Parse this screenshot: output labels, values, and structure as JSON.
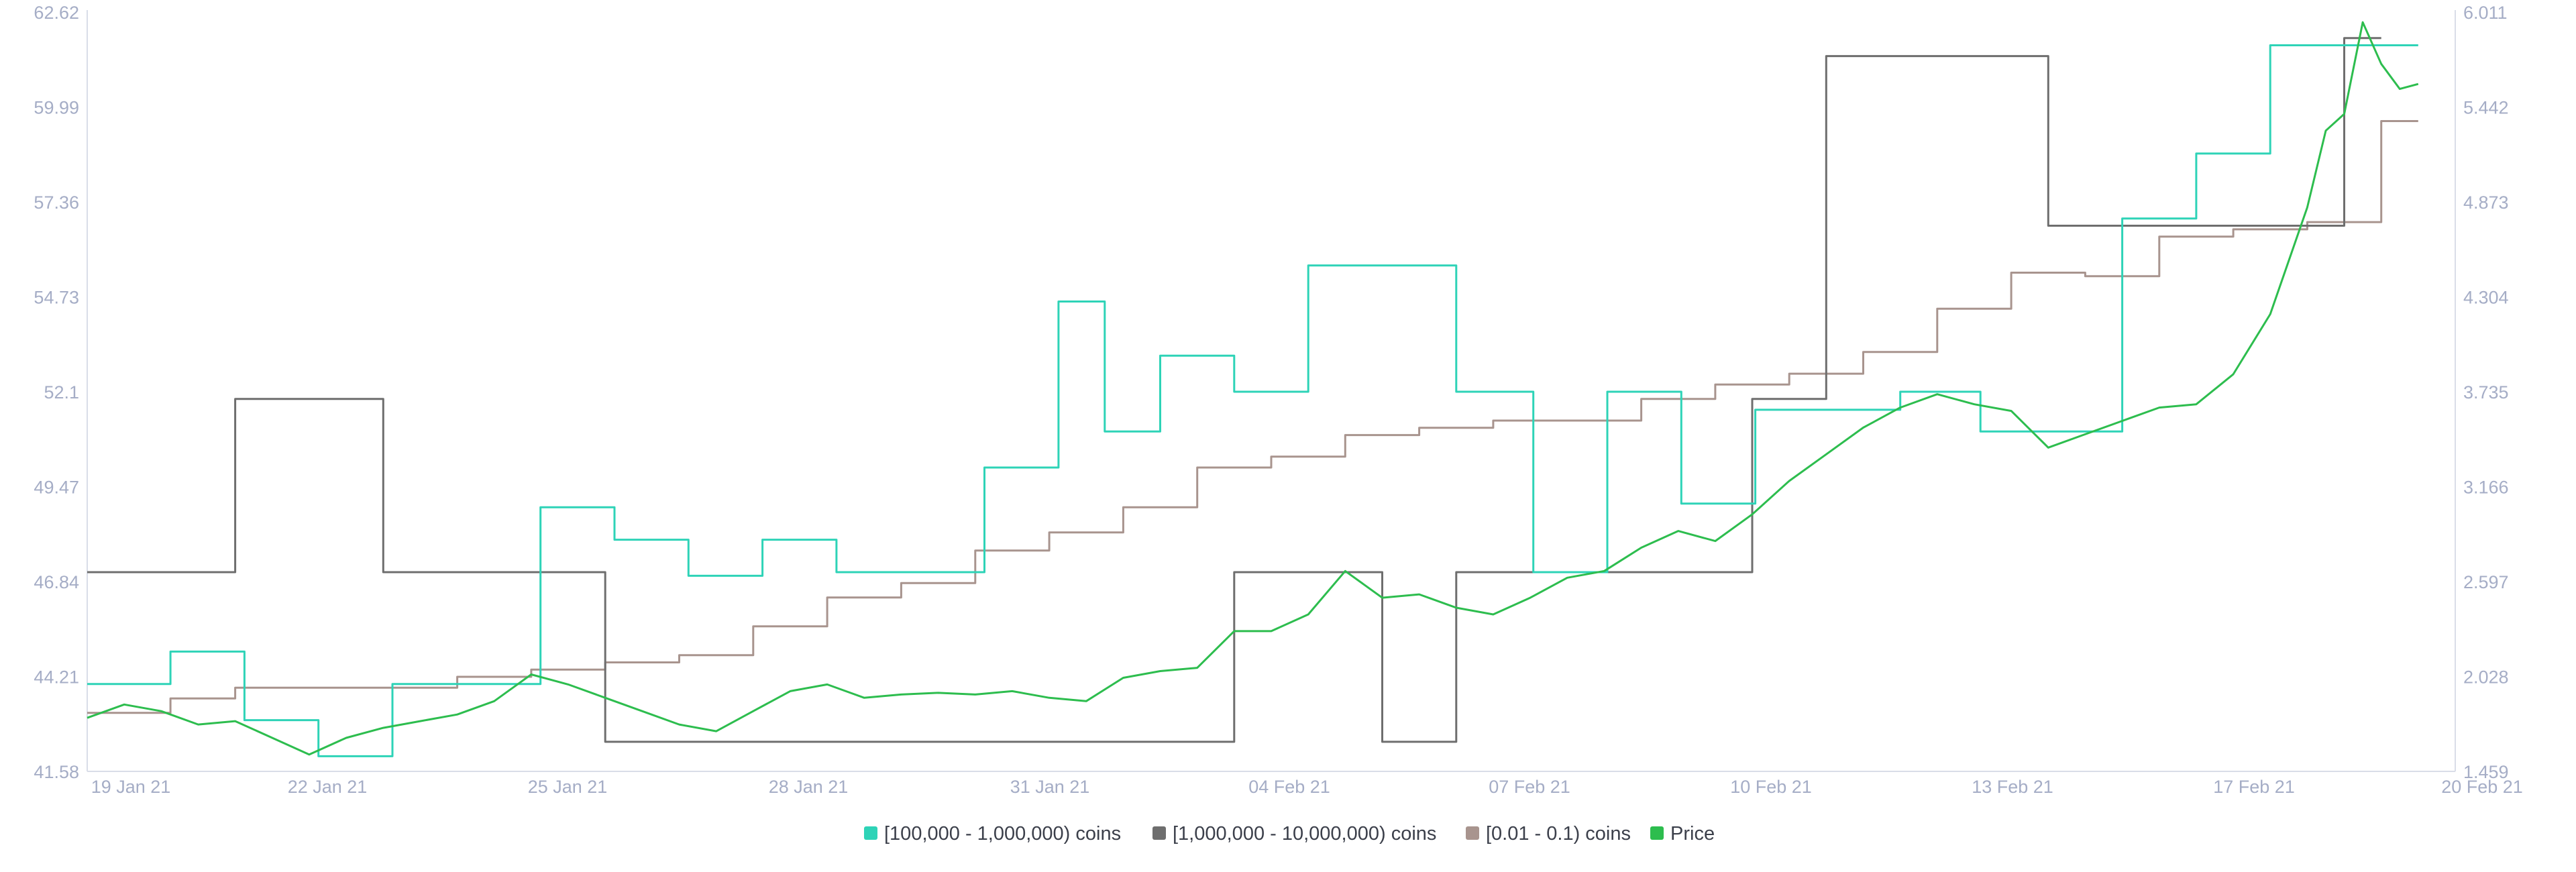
{
  "chart_data": {
    "type": "line",
    "colors": {
      "whales_100k_1m": "#2ed3b7",
      "whales_1m_10m": "#6e6e6e",
      "small_001_01": "#a8948e",
      "price": "#2dbd4e",
      "axis": "#d9dde8",
      "tick_text": "#a5adc6"
    },
    "x_axis": {
      "range_days": [
        "2021-01-19",
        "2021-02-20"
      ],
      "tick_labels": [
        "19 Jan 21",
        "22 Jan 21",
        "25 Jan 21",
        "28 Jan 21",
        "31 Jan 21",
        "04 Feb 21",
        "07 Feb 21",
        "10 Feb 21",
        "13 Feb 21",
        "17 Feb 21",
        "20 Feb 21"
      ]
    },
    "y_left": {
      "min": 41.58,
      "max": 62.62,
      "tick_labels": [
        "62.62",
        "59.99",
        "57.36",
        "54.73",
        "52.1",
        "49.47",
        "46.84",
        "44.21",
        "41.58"
      ]
    },
    "y_right": {
      "min": 1.459,
      "max": 6.011,
      "tick_labels": [
        "6.011",
        "5.442",
        "4.873",
        "4.304",
        "3.735",
        "3.166",
        "2.597",
        "2.028",
        "1.459"
      ]
    },
    "legend": [
      {
        "key": "whales_100k_1m",
        "label": "[100,000  - 1,000,000) coins"
      },
      {
        "key": "whales_1m_10m",
        "label": "[1,000,000 - 10,000,000) coins"
      },
      {
        "key": "small_001_01",
        "label": "[0.01 - 0.1) coins"
      },
      {
        "key": "price",
        "label": "Price"
      }
    ],
    "series": [
      {
        "key": "whales_100k_1m",
        "axis": "left",
        "step": true,
        "points": [
          [
            "2021-01-19 00:00",
            44.0
          ],
          [
            "2021-01-20 03:00",
            44.9
          ],
          [
            "2021-01-21 03:00",
            43.0
          ],
          [
            "2021-01-22 03:00",
            42.0
          ],
          [
            "2021-01-23 03:00",
            44.0
          ],
          [
            "2021-01-25 03:00",
            48.9
          ],
          [
            "2021-01-26 03:00",
            48.0
          ],
          [
            "2021-01-27 03:00",
            47.0
          ],
          [
            "2021-01-28 03:00",
            48.0
          ],
          [
            "2021-01-29 03:00",
            47.1
          ],
          [
            "2021-01-31 03:00",
            50.0
          ],
          [
            "2021-02-01 03:00",
            54.6
          ],
          [
            "2021-02-01 18:00",
            51.0
          ],
          [
            "2021-02-02 12:00",
            53.1
          ],
          [
            "2021-02-03 12:00",
            52.1
          ],
          [
            "2021-02-04 12:00",
            55.6
          ],
          [
            "2021-02-06 12:00",
            52.1
          ],
          [
            "2021-02-07 13:00",
            47.1
          ],
          [
            "2021-02-08 13:00",
            52.1
          ],
          [
            "2021-02-09 13:00",
            49.0
          ],
          [
            "2021-02-10 13:00",
            51.6
          ],
          [
            "2021-02-11 13:00",
            51.6
          ],
          [
            "2021-02-12 12:00",
            52.1
          ],
          [
            "2021-02-13 14:00",
            51.0
          ],
          [
            "2021-02-15 12:00",
            56.9
          ],
          [
            "2021-02-16 12:00",
            58.7
          ],
          [
            "2021-02-17 12:00",
            61.7
          ],
          [
            "2021-02-19 12:00",
            61.7
          ]
        ]
      },
      {
        "key": "whales_1m_10m",
        "axis": "left",
        "step": true,
        "points": [
          [
            "2021-01-19 00:00",
            47.1
          ],
          [
            "2021-01-21 00:00",
            51.9
          ],
          [
            "2021-01-23 00:00",
            47.1
          ],
          [
            "2021-01-26 00:00",
            42.4
          ],
          [
            "2021-02-03 12:00",
            47.1
          ],
          [
            "2021-02-05 12:00",
            42.4
          ],
          [
            "2021-02-06 12:00",
            47.1
          ],
          [
            "2021-02-10 12:00",
            51.9
          ],
          [
            "2021-02-11 12:00",
            61.4
          ],
          [
            "2021-02-14 12:00",
            56.7
          ],
          [
            "2021-02-18 12:00",
            61.9
          ],
          [
            "2021-02-19 00:00",
            61.9
          ]
        ]
      },
      {
        "key": "small_001_01",
        "axis": "left",
        "step": true,
        "points": [
          [
            "2021-01-19 00:00",
            43.2
          ],
          [
            "2021-01-20 03:00",
            43.6
          ],
          [
            "2021-01-21 00:00",
            43.9
          ],
          [
            "2021-01-24 00:00",
            44.2
          ],
          [
            "2021-01-25 00:00",
            44.4
          ],
          [
            "2021-01-26 00:00",
            44.6
          ],
          [
            "2021-01-27 00:00",
            44.8
          ],
          [
            "2021-01-28 00:00",
            45.6
          ],
          [
            "2021-01-29 00:00",
            46.4
          ],
          [
            "2021-01-30 00:00",
            46.8
          ],
          [
            "2021-01-31 00:00",
            47.7
          ],
          [
            "2021-02-01 00:00",
            48.2
          ],
          [
            "2021-02-02 00:00",
            48.9
          ],
          [
            "2021-02-03 00:00",
            50.0
          ],
          [
            "2021-02-04 00:00",
            50.3
          ],
          [
            "2021-02-05 00:00",
            50.9
          ],
          [
            "2021-02-06 00:00",
            51.1
          ],
          [
            "2021-02-07 00:00",
            51.3
          ],
          [
            "2021-02-09 00:00",
            51.9
          ],
          [
            "2021-02-10 00:00",
            52.3
          ],
          [
            "2021-02-11 00:00",
            52.6
          ],
          [
            "2021-02-12 00:00",
            53.2
          ],
          [
            "2021-02-13 00:00",
            54.4
          ],
          [
            "2021-02-14 00:00",
            55.4
          ],
          [
            "2021-02-15 00:00",
            55.3
          ],
          [
            "2021-02-16 00:00",
            56.4
          ],
          [
            "2021-02-17 00:00",
            56.6
          ],
          [
            "2021-02-18 00:00",
            56.8
          ],
          [
            "2021-02-19 00:00",
            59.6
          ],
          [
            "2021-02-19 12:00",
            59.6
          ]
        ]
      },
      {
        "key": "price",
        "axis": "right",
        "step": false,
        "points": [
          [
            "2021-01-19 00:00",
            1.78
          ],
          [
            "2021-01-19 12:00",
            1.86
          ],
          [
            "2021-01-20 00:00",
            1.82
          ],
          [
            "2021-01-20 12:00",
            1.74
          ],
          [
            "2021-01-21 00:00",
            1.76
          ],
          [
            "2021-01-21 12:00",
            1.66
          ],
          [
            "2021-01-22 00:00",
            1.56
          ],
          [
            "2021-01-22 12:00",
            1.66
          ],
          [
            "2021-01-23 00:00",
            1.72
          ],
          [
            "2021-01-23 12:00",
            1.76
          ],
          [
            "2021-01-24 00:00",
            1.8
          ],
          [
            "2021-01-24 12:00",
            1.88
          ],
          [
            "2021-01-25 00:00",
            2.04
          ],
          [
            "2021-01-25 12:00",
            1.98
          ],
          [
            "2021-01-26 00:00",
            1.9
          ],
          [
            "2021-01-26 12:00",
            1.82
          ],
          [
            "2021-01-27 00:00",
            1.74
          ],
          [
            "2021-01-27 12:00",
            1.7
          ],
          [
            "2021-01-28 00:00",
            1.82
          ],
          [
            "2021-01-28 12:00",
            1.94
          ],
          [
            "2021-01-29 00:00",
            1.98
          ],
          [
            "2021-01-29 12:00",
            1.9
          ],
          [
            "2021-01-30 00:00",
            1.92
          ],
          [
            "2021-01-30 12:00",
            1.93
          ],
          [
            "2021-01-31 00:00",
            1.92
          ],
          [
            "2021-01-31 12:00",
            1.94
          ],
          [
            "2021-02-01 00:00",
            1.9
          ],
          [
            "2021-02-01 12:00",
            1.88
          ],
          [
            "2021-02-02 00:00",
            2.02
          ],
          [
            "2021-02-02 12:00",
            2.06
          ],
          [
            "2021-02-03 00:00",
            2.08
          ],
          [
            "2021-02-03 12:00",
            2.3
          ],
          [
            "2021-02-04 00:00",
            2.3
          ],
          [
            "2021-02-04 12:00",
            2.4
          ],
          [
            "2021-02-05 00:00",
            2.66
          ],
          [
            "2021-02-05 12:00",
            2.5
          ],
          [
            "2021-02-06 00:00",
            2.52
          ],
          [
            "2021-02-06 12:00",
            2.44
          ],
          [
            "2021-02-07 00:00",
            2.4
          ],
          [
            "2021-02-07 12:00",
            2.5
          ],
          [
            "2021-02-08 00:00",
            2.62
          ],
          [
            "2021-02-08 12:00",
            2.66
          ],
          [
            "2021-02-09 00:00",
            2.8
          ],
          [
            "2021-02-09 12:00",
            2.9
          ],
          [
            "2021-02-10 00:00",
            2.84
          ],
          [
            "2021-02-10 12:00",
            3.0
          ],
          [
            "2021-02-11 00:00",
            3.2
          ],
          [
            "2021-02-11 12:00",
            3.36
          ],
          [
            "2021-02-12 00:00",
            3.52
          ],
          [
            "2021-02-12 12:00",
            3.64
          ],
          [
            "2021-02-13 00:00",
            3.72
          ],
          [
            "2021-02-13 12:00",
            3.66
          ],
          [
            "2021-02-14 00:00",
            3.62
          ],
          [
            "2021-02-14 12:00",
            3.4
          ],
          [
            "2021-02-15 00:00",
            3.48
          ],
          [
            "2021-02-15 12:00",
            3.56
          ],
          [
            "2021-02-16 00:00",
            3.64
          ],
          [
            "2021-02-16 12:00",
            3.66
          ],
          [
            "2021-02-17 00:00",
            3.84
          ],
          [
            "2021-02-17 12:00",
            4.2
          ],
          [
            "2021-02-18 00:00",
            4.84
          ],
          [
            "2021-02-18 06:00",
            5.3
          ],
          [
            "2021-02-18 12:00",
            5.4
          ],
          [
            "2021-02-18 18:00",
            5.95
          ],
          [
            "2021-02-19 00:00",
            5.7
          ],
          [
            "2021-02-19 06:00",
            5.55
          ],
          [
            "2021-02-19 12:00",
            5.58
          ]
        ]
      }
    ],
    "grid": false,
    "legend_position": "bottom-center"
  }
}
